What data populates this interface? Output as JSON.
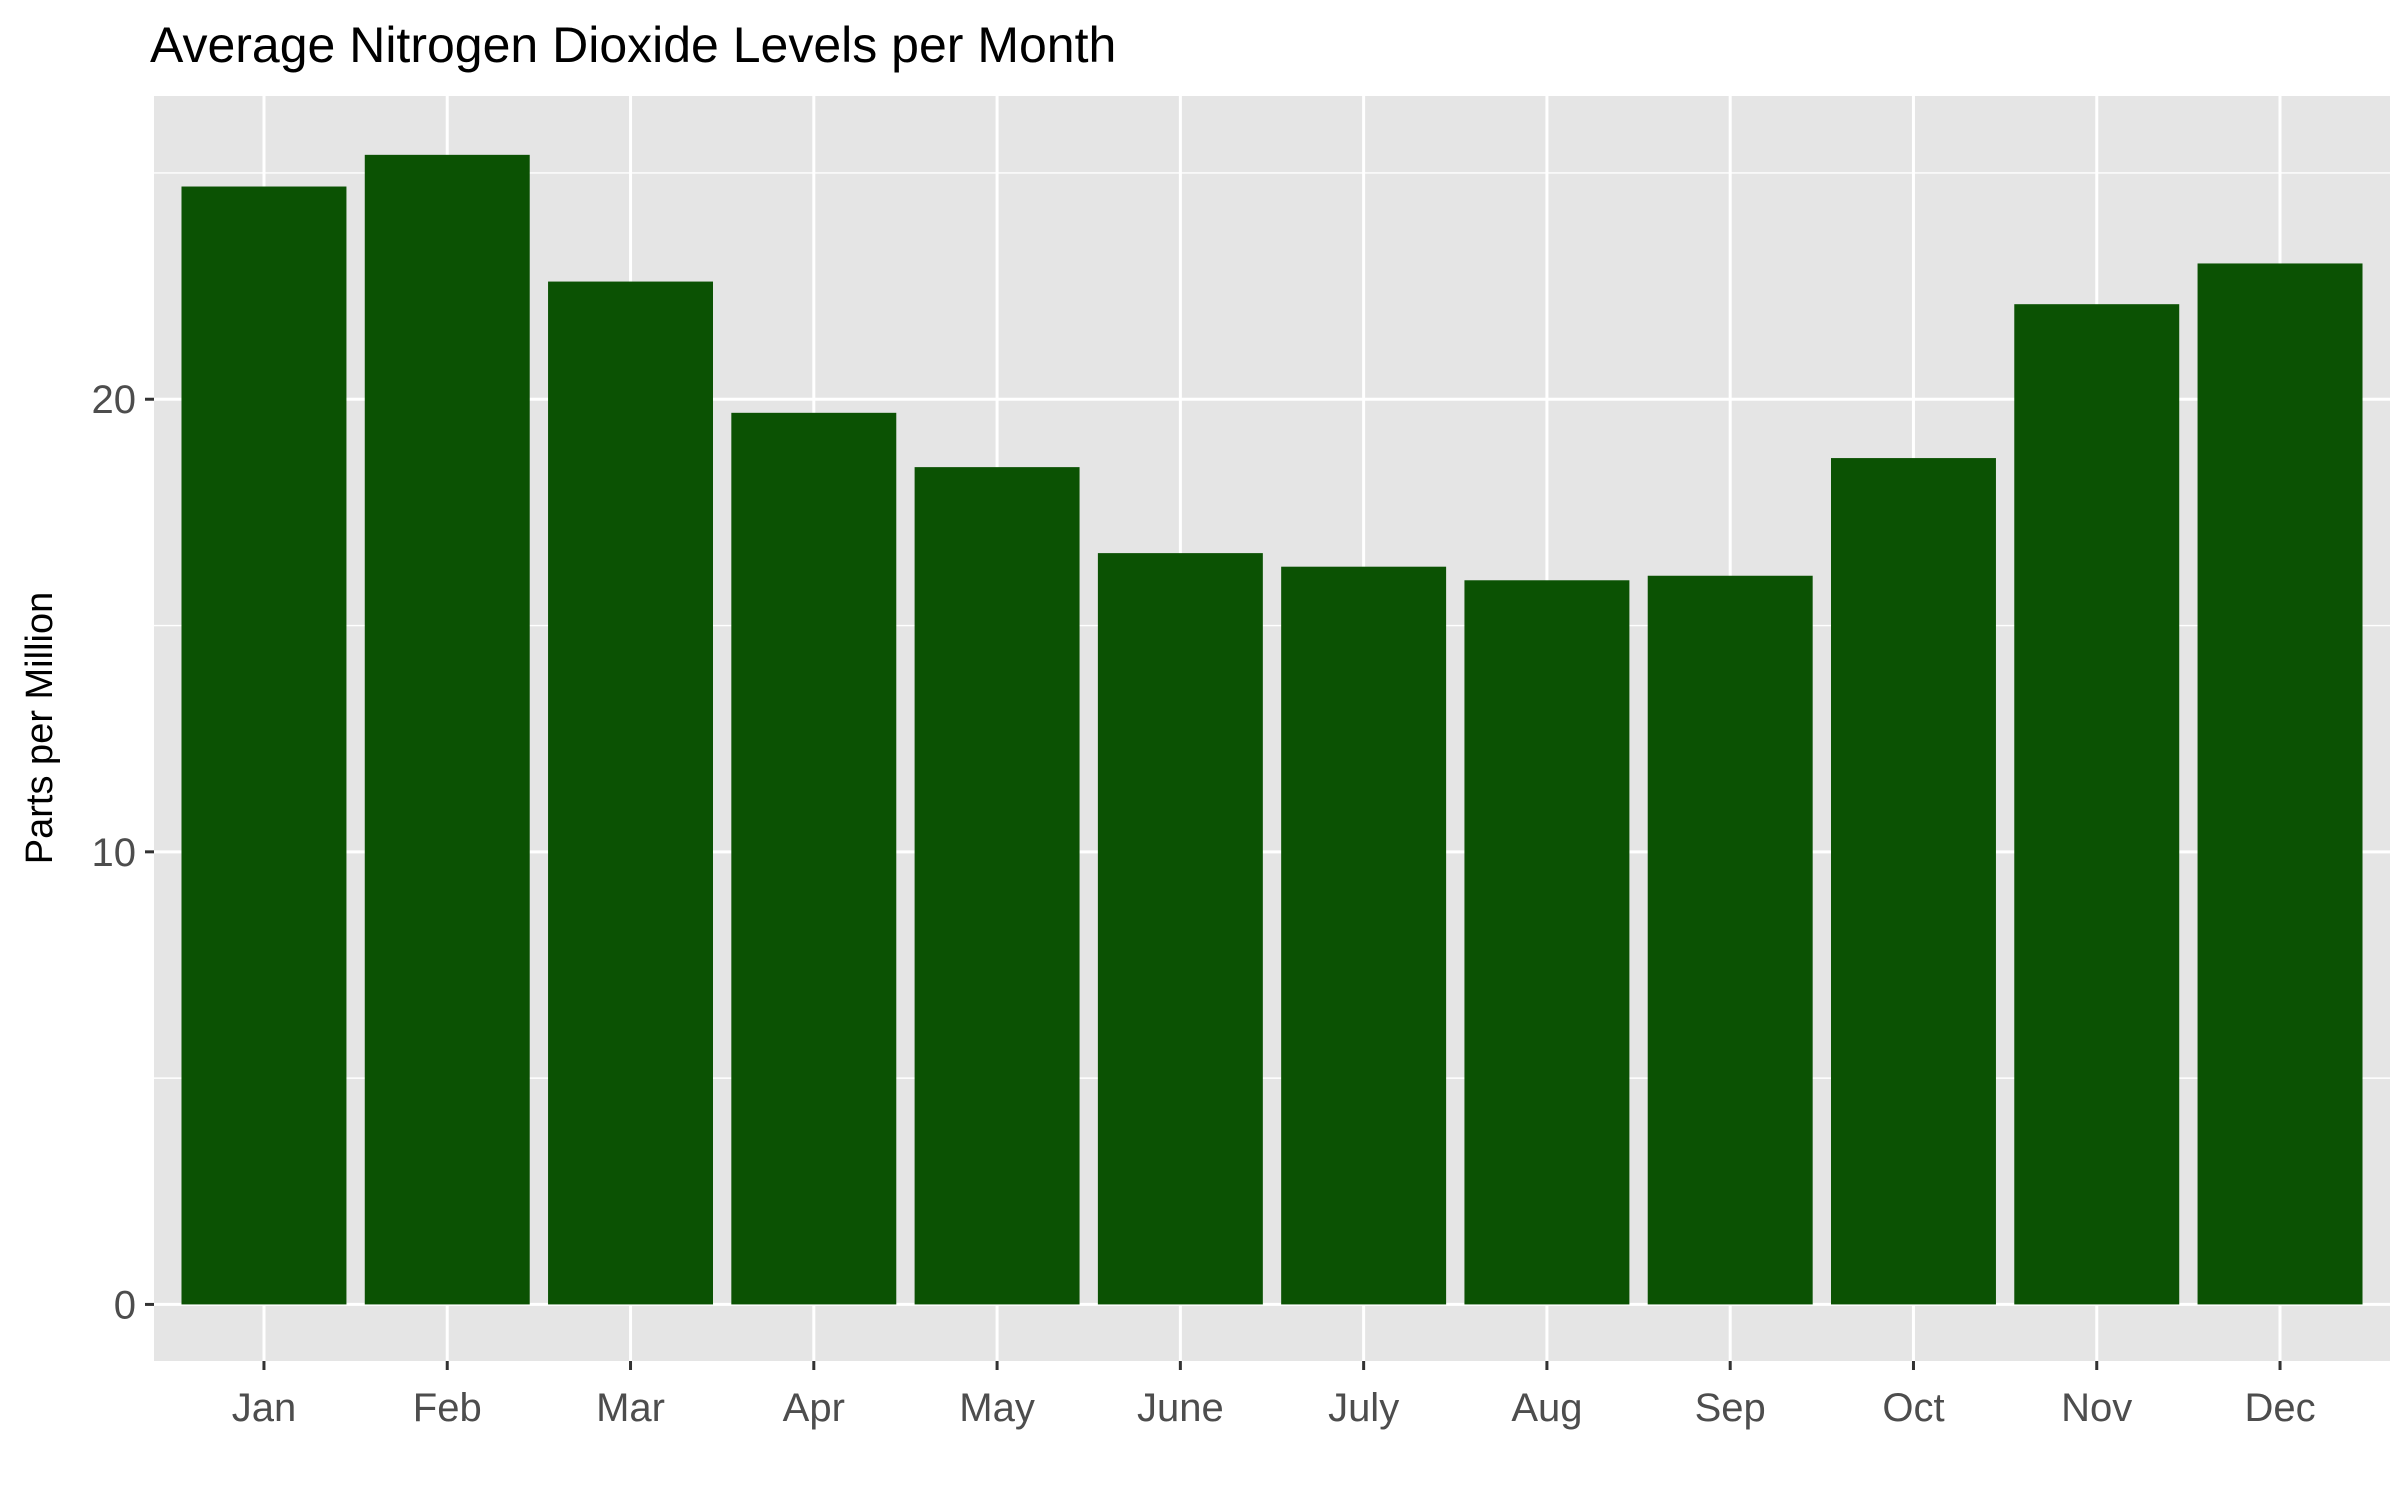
{
  "chart_data": {
    "type": "bar",
    "title": "Average Nitrogen Dioxide Levels per Month",
    "xlabel": "",
    "ylabel": "Parts per Million",
    "categories": [
      "Jan",
      "Feb",
      "Mar",
      "Apr",
      "May",
      "June",
      "July",
      "Aug",
      "Sep",
      "Oct",
      "Nov",
      "Dec"
    ],
    "values": [
      24.7,
      25.4,
      22.6,
      19.7,
      18.5,
      16.6,
      16.3,
      16.0,
      16.1,
      18.7,
      22.1,
      23.0
    ],
    "ylim": [
      -1.25,
      26.7
    ],
    "yticks": [
      0,
      10,
      20
    ],
    "grid": true,
    "legend": "none",
    "colors": {
      "bar": "#0b5203",
      "panel": "#e5e5e5",
      "grid": "#ffffff",
      "tick_text": "#4d4d4d",
      "title_text": "#000000"
    }
  }
}
